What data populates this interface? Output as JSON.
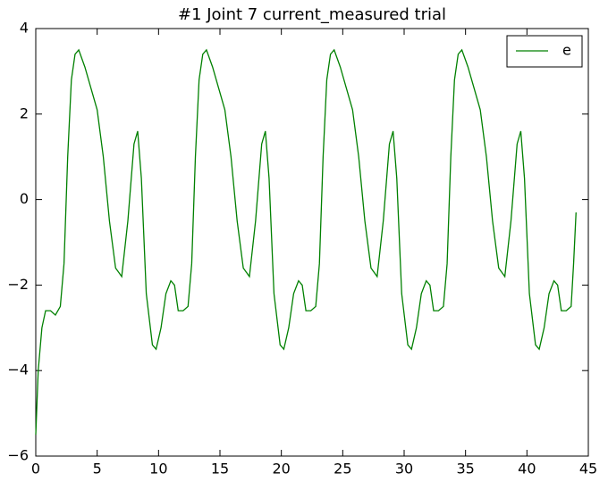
{
  "chart_data": {
    "type": "line",
    "title": "#1 Joint 7 current_measured trial",
    "x": [
      0,
      0.2,
      0.5,
      0.8,
      1.2,
      1.6,
      2,
      2.3,
      2.6,
      2.9,
      3.2,
      3.5,
      4,
      4.5,
      5,
      5.5,
      6,
      6.5,
      7,
      7.5,
      8,
      8.3,
      8.6,
      9,
      9.5,
      9.8,
      10.2,
      10.6,
      11,
      11.3,
      11.6,
      12,
      12.4,
      12.7,
      13,
      13.3,
      13.6,
      13.9,
      14.4,
      14.9,
      15.4,
      15.9,
      16.4,
      16.9,
      17.4,
      17.9,
      18.4,
      18.7,
      19,
      19.4,
      19.9,
      20.2,
      20.6,
      21,
      21.4,
      21.7,
      22,
      22.4,
      22.8,
      23.1,
      23.4,
      23.7,
      24,
      24.3,
      24.8,
      25.3,
      25.8,
      26.3,
      26.8,
      27.3,
      27.8,
      28.3,
      28.8,
      29.1,
      29.4,
      29.8,
      30.3,
      30.6,
      31,
      31.4,
      31.8,
      32.1,
      32.4,
      32.8,
      33.2,
      33.5,
      33.8,
      34.1,
      34.4,
      34.7,
      35.2,
      35.7,
      36.2,
      36.7,
      37.2,
      37.7,
      38.2,
      38.7,
      39.2,
      39.5,
      39.8,
      40.2,
      40.7,
      41,
      41.4,
      41.8,
      42.2,
      42.5,
      42.8,
      43.2,
      43.6,
      43.8,
      44
    ],
    "series": [
      {
        "name": "e",
        "color": "#008000",
        "values": [
          -5.5,
          -4,
          -3,
          -2.6,
          -2.6,
          -2.7,
          -2.5,
          -1.5,
          1,
          2.8,
          3.4,
          3.5,
          3.1,
          2.6,
          2.1,
          1,
          -0.5,
          -1.6,
          -1.8,
          -0.5,
          1.3,
          1.6,
          0.5,
          -2.2,
          -3.4,
          -3.5,
          -3,
          -2.2,
          -1.9,
          -2,
          -2.6,
          -2.6,
          -2.5,
          -1.5,
          1,
          2.8,
          3.4,
          3.5,
          3.1,
          2.6,
          2.1,
          1,
          -0.5,
          -1.6,
          -1.8,
          -0.5,
          1.3,
          1.6,
          0.5,
          -2.2,
          -3.4,
          -3.5,
          -3,
          -2.2,
          -1.9,
          -2,
          -2.6,
          -2.6,
          -2.5,
          -1.5,
          1,
          2.8,
          3.4,
          3.5,
          3.1,
          2.6,
          2.1,
          1,
          -0.5,
          -1.6,
          -1.8,
          -0.5,
          1.3,
          1.6,
          0.5,
          -2.2,
          -3.4,
          -3.5,
          -3,
          -2.2,
          -1.9,
          -2,
          -2.6,
          -2.6,
          -2.5,
          -1.5,
          1,
          2.8,
          3.4,
          3.5,
          3.1,
          2.6,
          2.1,
          1,
          -0.5,
          -1.6,
          -1.8,
          -0.5,
          1.3,
          1.6,
          0.5,
          -2.2,
          -3.4,
          -3.5,
          -3,
          -2.2,
          -1.9,
          -2,
          -2.6,
          -2.6,
          -2.5,
          -1.5,
          -0.3
        ]
      }
    ],
    "xlim": [
      0,
      45
    ],
    "xticks": [
      0,
      5,
      10,
      15,
      20,
      25,
      30,
      35,
      40,
      45
    ],
    "ylim": [
      -6,
      4
    ],
    "yticks": [
      {
        "value": -6,
        "label": "−6"
      },
      {
        "value": -4,
        "label": "−4"
      },
      {
        "value": -2,
        "label": "−2"
      },
      0,
      2,
      4
    ],
    "legend": "upper right"
  }
}
